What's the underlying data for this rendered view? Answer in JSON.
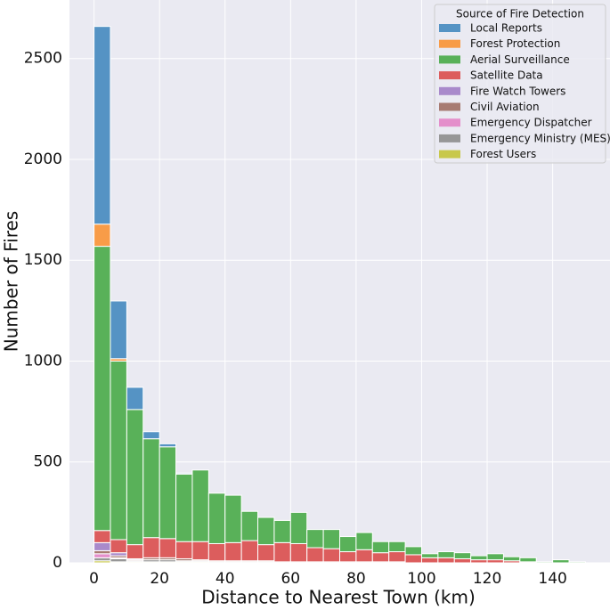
{
  "chart_data": {
    "type": "histogram",
    "stacked": true,
    "x_label": "Distance to Nearest Town (km)",
    "y_label": "Number of Fires",
    "legend_title": "Source of Fire Detection",
    "legend_position": "upper right",
    "grid": true,
    "bins": [
      0,
      5,
      10,
      15,
      20,
      25,
      30,
      35,
      40,
      45,
      50,
      55,
      60,
      65,
      70,
      75,
      80,
      85,
      90,
      95,
      100,
      105,
      110,
      115,
      120,
      125,
      130,
      135,
      140,
      145,
      150
    ],
    "xlim": [
      -7.5,
      157.5
    ],
    "xticks": [
      0,
      20,
      40,
      60,
      80,
      100,
      120,
      140
    ],
    "ylim": [
      0,
      2790
    ],
    "yticks": [
      0,
      500,
      1000,
      1500,
      2000,
      2500
    ],
    "series": [
      {
        "name": "Local Reports",
        "color": "#5593c4",
        "values": [
          980,
          286,
          110,
          35,
          15,
          5,
          0,
          0,
          0,
          0,
          0,
          0,
          0,
          0,
          0,
          0,
          0,
          0,
          0,
          0,
          0,
          0,
          0,
          0,
          0,
          0,
          0,
          0,
          0,
          0
        ]
      },
      {
        "name": "Forest Protection",
        "color": "#f89c48",
        "values": [
          110,
          12,
          0,
          0,
          0,
          0,
          0,
          0,
          0,
          0,
          0,
          0,
          0,
          0,
          0,
          0,
          0,
          0,
          0,
          0,
          0,
          0,
          0,
          0,
          0,
          0,
          0,
          0,
          0,
          0
        ]
      },
      {
        "name": "Aerial Surveillance",
        "color": "#59b159",
        "values": [
          1409,
          885,
          670,
          490,
          455,
          335,
          355,
          250,
          235,
          145,
          135,
          110,
          155,
          90,
          95,
          75,
          85,
          55,
          50,
          40,
          20,
          30,
          30,
          20,
          30,
          20,
          20,
          5,
          15,
          5
        ]
      },
      {
        "name": "Satellite Data",
        "color": "#dc5d5d",
        "values": [
          60,
          65,
          70,
          100,
          95,
          85,
          90,
          85,
          90,
          100,
          80,
          95,
          90,
          70,
          65,
          50,
          60,
          45,
          50,
          40,
          25,
          25,
          20,
          15,
          15,
          10,
          5,
          0,
          0,
          0
        ]
      },
      {
        "name": "Fire Watch Towers",
        "color": "#a98acb",
        "values": [
          40,
          15,
          5,
          0,
          0,
          0,
          0,
          0,
          0,
          0,
          0,
          0,
          0,
          0,
          0,
          0,
          0,
          0,
          0,
          0,
          0,
          0,
          0,
          0,
          0,
          0,
          0,
          0,
          0,
          0
        ]
      },
      {
        "name": "Civil Aviation",
        "color": "#a77b72",
        "values": [
          15,
          10,
          5,
          10,
          10,
          10,
          5,
          5,
          5,
          5,
          5,
          0,
          0,
          0,
          0,
          0,
          0,
          0,
          0,
          0,
          0,
          0,
          0,
          0,
          0,
          0,
          0,
          0,
          0,
          0
        ]
      },
      {
        "name": "Emergency Dispatcher",
        "color": "#e48fcb",
        "values": [
          20,
          5,
          0,
          0,
          0,
          0,
          0,
          0,
          0,
          0,
          0,
          0,
          0,
          0,
          0,
          0,
          0,
          0,
          0,
          0,
          0,
          0,
          0,
          0,
          0,
          0,
          0,
          0,
          0,
          0
        ]
      },
      {
        "name": "Emergency Ministry (MES)",
        "color": "#979797",
        "values": [
          15,
          15,
          5,
          10,
          10,
          5,
          5,
          5,
          5,
          5,
          5,
          5,
          5,
          5,
          5,
          5,
          5,
          5,
          5,
          0,
          0,
          0,
          0,
          0,
          0,
          0,
          0,
          0,
          0,
          0
        ]
      },
      {
        "name": "Forest Users",
        "color": "#c8c84c",
        "values": [
          10,
          5,
          5,
          5,
          5,
          5,
          5,
          0,
          0,
          0,
          0,
          0,
          0,
          0,
          0,
          0,
          0,
          0,
          0,
          0,
          0,
          0,
          0,
          0,
          0,
          0,
          0,
          0,
          0,
          0
        ]
      }
    ]
  }
}
